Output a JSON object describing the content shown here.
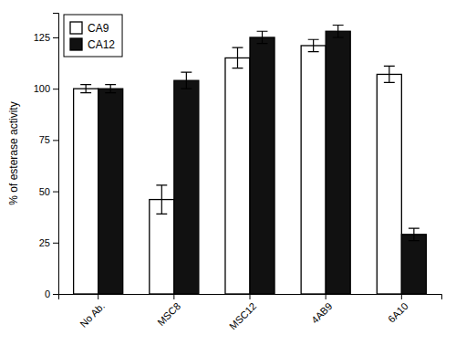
{
  "chart_data": {
    "type": "bar",
    "ylabel": "% of esterase activity",
    "categories": [
      "No Ab.",
      "MSC8",
      "MSC12",
      "4AB9",
      "6A10"
    ],
    "series": [
      {
        "name": "CA9",
        "color": "#ffffff",
        "values": [
          100,
          46,
          115,
          121,
          107
        ],
        "errors": [
          2,
          7,
          5,
          3,
          4
        ]
      },
      {
        "name": "CA12",
        "color": "#111111",
        "values": [
          100,
          104,
          125,
          128,
          29
        ],
        "errors": [
          2,
          4,
          3,
          3,
          3
        ]
      }
    ],
    "ylim": [
      0,
      137
    ],
    "yticks": [
      0,
      25,
      50,
      75,
      100,
      125
    ],
    "grid": false,
    "legend": "top-left"
  }
}
